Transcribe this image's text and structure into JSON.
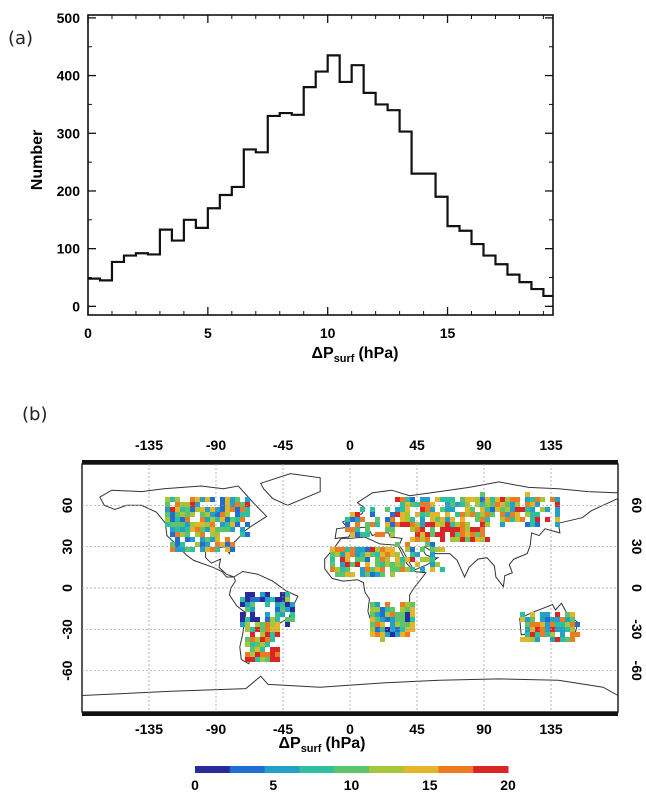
{
  "panels": {
    "a": {
      "label": "(a)"
    },
    "b": {
      "label": "(b)"
    }
  },
  "chart_data": [
    {
      "type": "bar",
      "subtype": "histogram",
      "ylabel": "Number",
      "xlabel_main": "ΔP",
      "xlabel_sub": "surf",
      "xlabel_unit": "(hPa)",
      "xlim": [
        0,
        19.4
      ],
      "ylim": [
        -15,
        505
      ],
      "xticks": [
        0,
        5,
        10,
        15
      ],
      "yticks": [
        0,
        100,
        200,
        300,
        400,
        500
      ],
      "bin_width": 0.5,
      "bin_edges_start": 0,
      "values": [
        48,
        45,
        77,
        88,
        92,
        90,
        133,
        114,
        150,
        136,
        170,
        193,
        207,
        272,
        267,
        330,
        335,
        332,
        380,
        407,
        435,
        389,
        418,
        370,
        350,
        340,
        303,
        230,
        230,
        190,
        139,
        131,
        108,
        88,
        73,
        55,
        42,
        30,
        18
      ],
      "grid": false
    },
    {
      "type": "map",
      "xlabel_main": "ΔP",
      "xlabel_sub": "surf",
      "xlabel_unit": "(hPa)",
      "lon_ticks": [
        -135,
        -90,
        -45,
        0,
        45,
        90,
        135
      ],
      "lat_ticks": [
        60,
        30,
        0,
        -30,
        -60
      ],
      "lon_range": [
        -180,
        180
      ],
      "lat_range": [
        -90,
        90
      ],
      "grid": true,
      "colorbar": {
        "min": 0,
        "max": 20,
        "ticks": [
          0,
          5,
          10,
          15,
          20
        ],
        "colors": [
          "#2a2a9a",
          "#1e6fd0",
          "#22a0c8",
          "#2dbfa0",
          "#5cc46a",
          "#a6c63a",
          "#e2b52a",
          "#ee7a22",
          "#d92525"
        ]
      }
    }
  ]
}
